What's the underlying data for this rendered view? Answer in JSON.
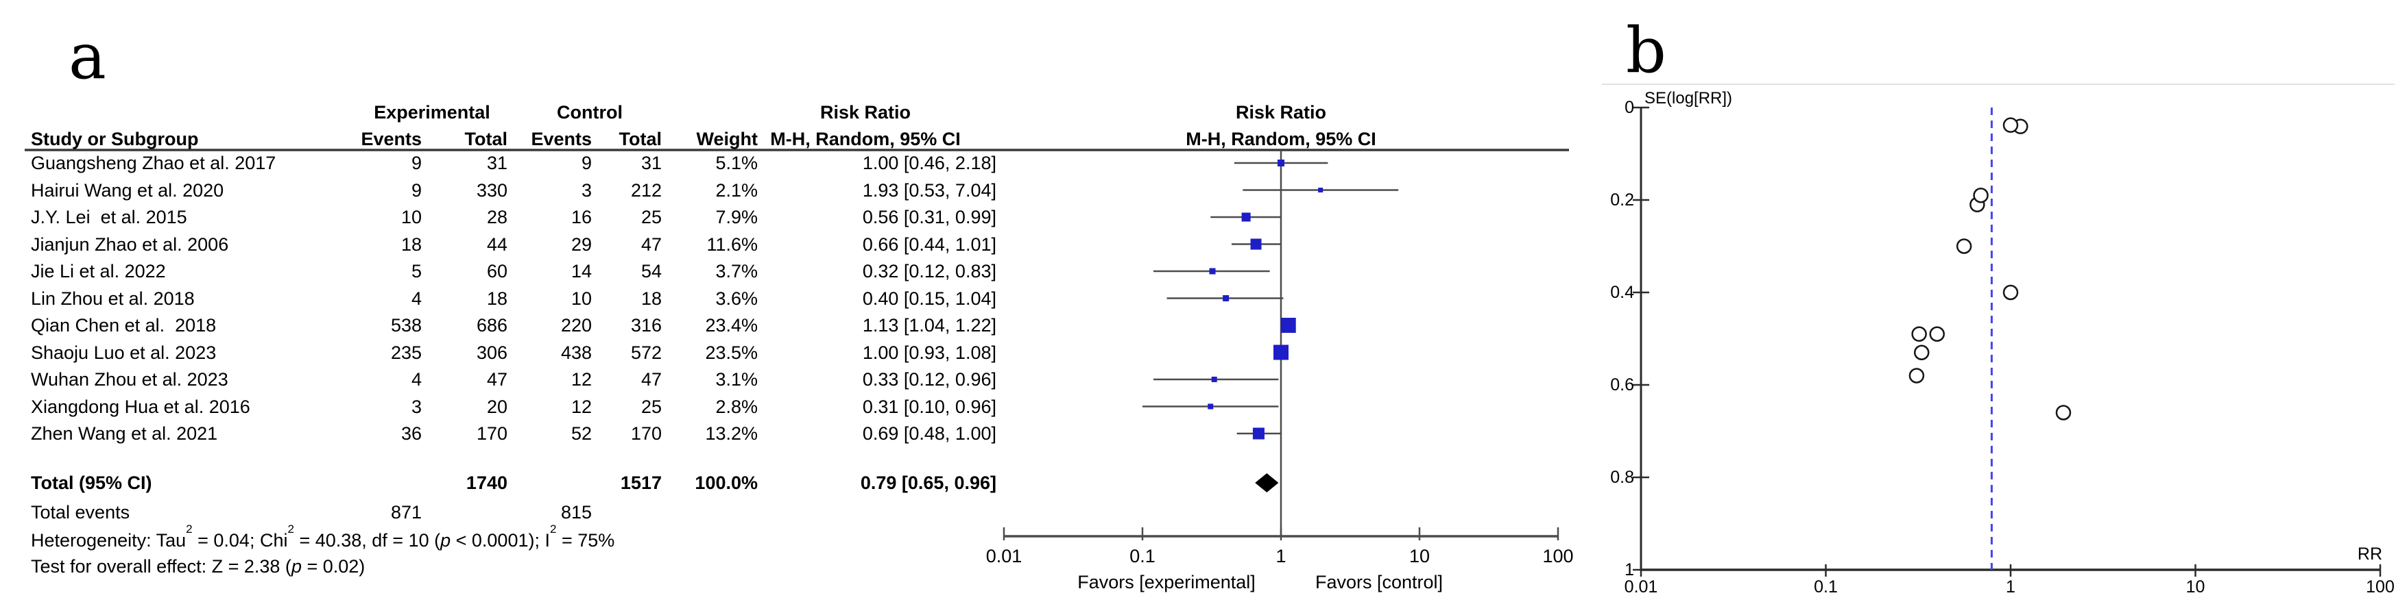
{
  "chart_data": [
    {
      "type": "table",
      "panel_label": "a",
      "title": "Forest plot - Risk Ratio, M-H Random effects, 95% CI",
      "header": {
        "group_experimental": "Experimental",
        "group_control": "Control",
        "col_study": "Study or Subgroup",
        "col_events": "Events",
        "col_total": "Total",
        "col_weight": "Weight",
        "rr_title": "Risk Ratio",
        "rr_sub": "M-H, Random, 95% CI"
      },
      "studies": [
        {
          "name": "Guangsheng Zhao et al. 2017",
          "exp_events": "9",
          "exp_total": "31",
          "ctl_events": "9",
          "ctl_total": "31",
          "weight": "5.1%",
          "ci": "1.00 [0.46, 2.18]",
          "rr": 1.0,
          "lo": 0.46,
          "hi": 2.18,
          "w": 5.1
        },
        {
          "name": "Hairui Wang et al. 2020",
          "exp_events": "9",
          "exp_total": "330",
          "ctl_events": "3",
          "ctl_total": "212",
          "weight": "2.1%",
          "ci": "1.93 [0.53, 7.04]",
          "rr": 1.93,
          "lo": 0.53,
          "hi": 7.04,
          "w": 2.1
        },
        {
          "name": "J.Y. Lei  et al. 2015",
          "exp_events": "10",
          "exp_total": "28",
          "ctl_events": "16",
          "ctl_total": "25",
          "weight": "7.9%",
          "ci": "0.56 [0.31, 0.99]",
          "rr": 0.56,
          "lo": 0.31,
          "hi": 0.99,
          "w": 7.9
        },
        {
          "name": "Jianjun Zhao et al. 2006",
          "exp_events": "18",
          "exp_total": "44",
          "ctl_events": "29",
          "ctl_total": "47",
          "weight": "11.6%",
          "ci": "0.66 [0.44, 1.01]",
          "rr": 0.66,
          "lo": 0.44,
          "hi": 1.01,
          "w": 11.6
        },
        {
          "name": "Jie Li et al. 2022",
          "exp_events": "5",
          "exp_total": "60",
          "ctl_events": "14",
          "ctl_total": "54",
          "weight": "3.7%",
          "ci": "0.32 [0.12, 0.83]",
          "rr": 0.32,
          "lo": 0.12,
          "hi": 0.83,
          "w": 3.7
        },
        {
          "name": "Lin Zhou et al. 2018",
          "exp_events": "4",
          "exp_total": "18",
          "ctl_events": "10",
          "ctl_total": "18",
          "weight": "3.6%",
          "ci": "0.40 [0.15, 1.04]",
          "rr": 0.4,
          "lo": 0.15,
          "hi": 1.04,
          "w": 3.6
        },
        {
          "name": "Qian Chen et al.  2018",
          "exp_events": "538",
          "exp_total": "686",
          "ctl_events": "220",
          "ctl_total": "316",
          "weight": "23.4%",
          "ci": "1.13 [1.04, 1.22]",
          "rr": 1.13,
          "lo": 1.04,
          "hi": 1.22,
          "w": 23.4
        },
        {
          "name": "Shaoju Luo et al. 2023",
          "exp_events": "235",
          "exp_total": "306",
          "ctl_events": "438",
          "ctl_total": "572",
          "weight": "23.5%",
          "ci": "1.00 [0.93, 1.08]",
          "rr": 1.0,
          "lo": 0.93,
          "hi": 1.08,
          "w": 23.5
        },
        {
          "name": "Wuhan Zhou et al. 2023",
          "exp_events": "4",
          "exp_total": "47",
          "ctl_events": "12",
          "ctl_total": "47",
          "weight": "3.1%",
          "ci": "0.33 [0.12, 0.96]",
          "rr": 0.33,
          "lo": 0.12,
          "hi": 0.96,
          "w": 3.1
        },
        {
          "name": "Xiangdong Hua et al. 2016",
          "exp_events": "3",
          "exp_total": "20",
          "ctl_events": "12",
          "ctl_total": "25",
          "weight": "2.8%",
          "ci": "0.31 [0.10, 0.96]",
          "rr": 0.31,
          "lo": 0.1,
          "hi": 0.96,
          "w": 2.8
        },
        {
          "name": "Zhen Wang et al. 2021",
          "exp_events": "36",
          "exp_total": "170",
          "ctl_events": "52",
          "ctl_total": "170",
          "weight": "13.2%",
          "ci": "0.69 [0.48, 1.00]",
          "rr": 0.69,
          "lo": 0.48,
          "hi": 1.0,
          "w": 13.2
        }
      ],
      "total_row": {
        "label": "Total (95% CI)",
        "exp_total": "1740",
        "ctl_total": "1517",
        "weight": "100.0%",
        "ci": "0.79 [0.65, 0.96]",
        "rr": 0.79,
        "lo": 0.65,
        "hi": 0.96
      },
      "total_events": {
        "label": "Total events",
        "exp": "871",
        "ctl": "815"
      },
      "heterogeneity": {
        "t1": "Heterogeneity: Tau",
        "s1": "2",
        "t2": " = 0.04; Chi",
        "s2": "2",
        "t3": " = 40.38, df = 10 (",
        "p": "p",
        "t4": " < 0.0001); I",
        "s3": "2",
        "t5": " = 75%"
      },
      "overall_effect": {
        "t1": "Test for overall effect: Z = 2.38 (",
        "p": "p",
        "t2": " = 0.02)"
      },
      "x_axis": {
        "scale": "log",
        "xlim": [
          0.01,
          100
        ],
        "ticks": [
          0.01,
          0.1,
          1,
          10,
          100
        ],
        "favors_left": "Favors [experimental]",
        "favors_right": "Favors [control]"
      },
      "colors": {
        "square": "#1e1ec8",
        "ci_line": "#4c4c4c",
        "diamond": "#000000",
        "axis": "#4c4c4c",
        "rule": "#3a3a3a"
      }
    },
    {
      "type": "scatter",
      "panel_label": "b",
      "title": "Funnel plot of standard error by risk ratio",
      "xlabel": "RR",
      "ylabel": "SE(log[RR])",
      "x_scale": "log",
      "xlim": [
        0.01,
        100
      ],
      "ylim": [
        0,
        1
      ],
      "y_ticks": [
        0,
        0.2,
        0.4,
        0.6,
        0.8,
        1
      ],
      "x_ticks": [
        0.01,
        0.1,
        1,
        10,
        100
      ],
      "pooled_rr": 0.79,
      "points": [
        {
          "rr": 1.0,
          "se": 0.4
        },
        {
          "rr": 1.93,
          "se": 0.66
        },
        {
          "rr": 0.56,
          "se": 0.3
        },
        {
          "rr": 0.66,
          "se": 0.21
        },
        {
          "rr": 0.32,
          "se": 0.49
        },
        {
          "rr": 0.4,
          "se": 0.49
        },
        {
          "rr": 1.13,
          "se": 0.041
        },
        {
          "rr": 1.0,
          "se": 0.038
        },
        {
          "rr": 0.33,
          "se": 0.53
        },
        {
          "rr": 0.31,
          "se": 0.58
        },
        {
          "rr": 0.69,
          "se": 0.19
        }
      ],
      "colors": {
        "ref_line": "#4444ee",
        "circle_stroke": "#161616",
        "axis": "#2b2b2b"
      }
    }
  ]
}
